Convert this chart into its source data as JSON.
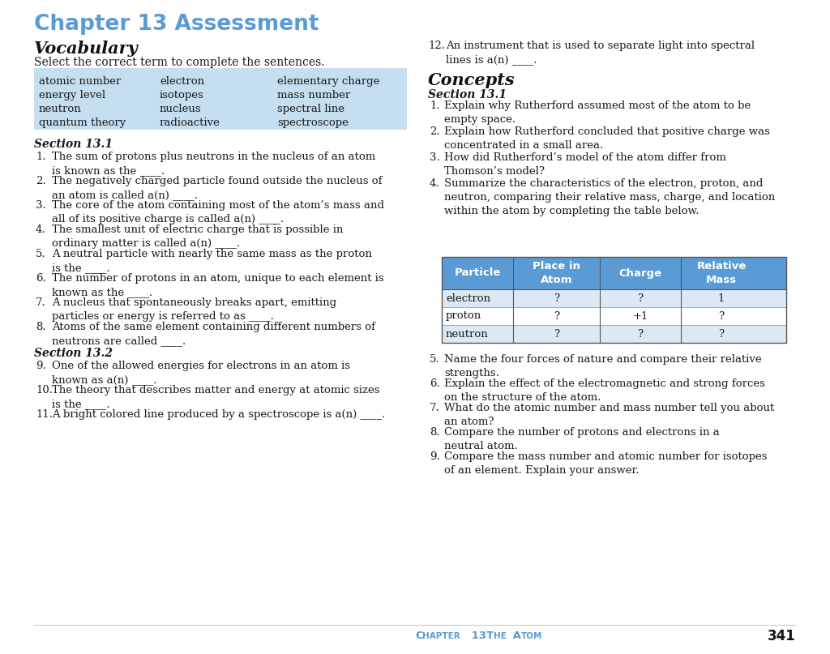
{
  "bg_color": "#ffffff",
  "chapter_title": "Chapter 13 Assessment",
  "chapter_title_color": "#5b9bd5",
  "vocab_title": "Vocabulary",
  "vocab_subtitle": "Select the correct term to complete the sentences.",
  "vocab_box_color": "#c5dff0",
  "vocab_terms": [
    [
      "atomic number",
      "electron",
      "elementary charge"
    ],
    [
      "energy level",
      "isotopes",
      "mass number"
    ],
    [
      "neutron",
      "nucleus",
      "spectral line"
    ],
    [
      "quantum theory",
      "radioactive",
      "spectroscope"
    ]
  ],
  "section_131_label": "Section 13.1",
  "section_132_label": "Section 13.2",
  "vocab_questions_1": [
    [
      "1.",
      "The sum of protons plus neutrons in the nucleus of an atom\nis known as the ____."
    ],
    [
      "2.",
      "The negatively charged particle found outside the nucleus of\nan atom is called a(n) ____."
    ],
    [
      "3.",
      "The core of the atom containing most of the atom’s mass and\nall of its positive charge is called a(n) ____."
    ],
    [
      "4.",
      "The smallest unit of electric charge that is possible in\nordinary matter is called a(n) ____."
    ],
    [
      "5.",
      "A neutral particle with nearly the same mass as the proton\nis the ____."
    ],
    [
      "6.",
      "The number of protons in an atom, unique to each element is\nknown as the ____."
    ],
    [
      "7.",
      "A nucleus that spontaneously breaks apart, emitting\nparticles or energy is referred to as ____."
    ],
    [
      "8.",
      "Atoms of the same element containing different numbers of\nneutrons are called ____."
    ]
  ],
  "vocab_questions_2": [
    [
      "9.",
      "One of the allowed energies for electrons in an atom is\nknown as a(n) ____."
    ],
    [
      "10.",
      "The theory that describes matter and energy at atomic sizes\nis the ____."
    ],
    [
      "11.",
      "A bright colored line produced by a spectroscope is a(n) ____."
    ]
  ],
  "right_q12_num": "12.",
  "right_q12_text": "An instrument that is used to separate light into spectral\nlines is a(n) ____.",
  "concepts_title": "Concepts",
  "concepts_section": "Section 13.1",
  "concepts_questions_1": [
    [
      "1.",
      "Explain why Rutherford assumed most of the atom to be\nempty space."
    ],
    [
      "2.",
      "Explain how Rutherford concluded that positive charge was\nconcentrated in a small area."
    ],
    [
      "3.",
      "How did Rutherford’s model of the atom differ from\nThomson’s model?"
    ],
    [
      "4.",
      "Summarize the characteristics of the electron, proton, and\nneutron, comparing their relative mass, charge, and location\nwithin the atom by completing the table below."
    ]
  ],
  "concepts_questions_2": [
    [
      "5.",
      "Name the four forces of nature and compare their relative\nstrengths."
    ],
    [
      "6.",
      "Explain the effect of the electromagnetic and strong forces\non the structure of the atom."
    ],
    [
      "7.",
      "What do the atomic number and mass number tell you about\nan atom?"
    ],
    [
      "8.",
      "Compare the number of protons and electrons in a\nneutral atom."
    ],
    [
      "9.",
      "Compare the mass number and atomic number for isotopes\nof an element. Explain your answer."
    ]
  ],
  "table_header_color": "#5b9bd5",
  "table_header_text_color": "#ffffff",
  "table_alt_color": "#dce9f5",
  "table_white_color": "#ffffff",
  "table_headers": [
    "Particle",
    "Place in\nAtom",
    "Charge",
    "Relative\nMass"
  ],
  "table_rows": [
    [
      "electron",
      "?",
      "?",
      "1"
    ],
    [
      "proton",
      "?",
      "+1",
      "?"
    ],
    [
      "neutron",
      "?",
      "?",
      "?"
    ]
  ],
  "footer_color": "#5b9bd5",
  "footer_page": "341"
}
